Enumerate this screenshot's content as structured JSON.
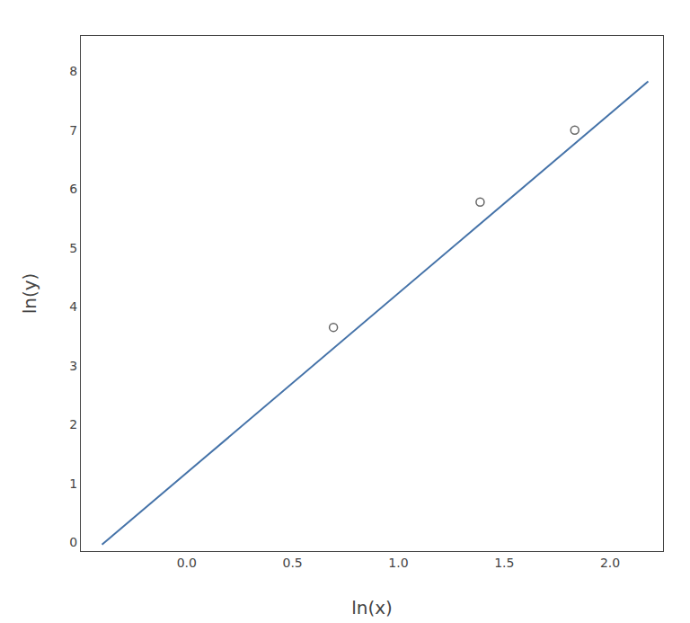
{
  "chart_data": {
    "type": "scatter",
    "xlabel": "ln(x)",
    "ylabel": "ln(y)",
    "series": [
      {
        "type": "scatter",
        "x": [
          0.693,
          1.386,
          1.833
        ],
        "values": [
          3.65,
          5.78,
          7.0
        ],
        "color": "#666666",
        "marker": "open circle"
      },
      {
        "type": "line",
        "x": [
          -0.4,
          2.18
        ],
        "values": [
          -0.04,
          7.829
        ],
        "color": "#4472a8"
      }
    ],
    "xlim": [
      -0.5,
      2.25
    ],
    "ylim": [
      -0.15,
      8.6
    ],
    "xticks": [
      {
        "value": 0.0,
        "label": "0.0"
      },
      0.5,
      {
        "value": 1.0,
        "label": "1.0"
      },
      1.5,
      {
        "value": 2.0,
        "label": "2.0"
      }
    ],
    "yticks": [
      0,
      1,
      2,
      3,
      4,
      5,
      6,
      7,
      8
    ],
    "grid": false
  }
}
